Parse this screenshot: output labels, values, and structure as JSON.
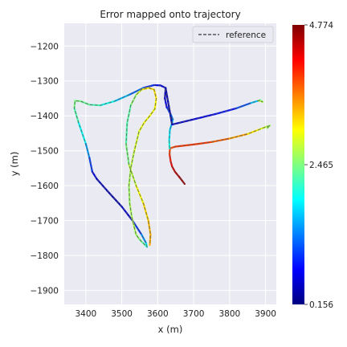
{
  "chart_data": {
    "type": "line",
    "title": "Error mapped onto trajectory",
    "xlabel": "x (m)",
    "ylabel": "y (m)",
    "xlim": [
      3340,
      3930
    ],
    "ylim": [
      -1940,
      -1135
    ],
    "x_ticks": [
      3400,
      3500,
      3600,
      3700,
      3800,
      3900
    ],
    "x_tick_labels": [
      "3400",
      "3500",
      "3600",
      "3700",
      "3800",
      "3900"
    ],
    "y_ticks": [
      -1200,
      -1300,
      -1400,
      -1500,
      -1600,
      -1700,
      -1800,
      -1900
    ],
    "y_tick_labels": [
      "−1200",
      "−1300",
      "−1400",
      "−1500",
      "−1600",
      "−1700",
      "−1800",
      "−1900"
    ],
    "grid": true,
    "legend": {
      "position": "top-right",
      "entries": [
        "reference"
      ]
    },
    "colorbar": {
      "min": 0.156,
      "max": 4.774,
      "tick_values": [
        0.156,
        2.465,
        4.774
      ],
      "tick_labels": [
        "0.156",
        "2.465",
        "4.774"
      ],
      "colormap": "jet"
    },
    "series": [
      {
        "x": [
          3675,
          3660,
          3648,
          3640,
          3636,
          3633,
          3634,
          3650,
          3700,
          3750,
          3800,
          3850,
          3880,
          3900,
          3912,
          3905
        ],
        "y": [
          -1595,
          -1575,
          -1560,
          -1545,
          -1530,
          -1510,
          -1493,
          -1488,
          -1482,
          -1475,
          -1465,
          -1452,
          -1440,
          -1432,
          -1428,
          -1435
        ],
        "error": [
          4.7,
          4.6,
          4.5,
          4.3,
          4.2,
          4.0,
          3.8,
          3.9,
          4.0,
          3.9,
          3.6,
          3.3,
          3.0,
          2.8,
          2.6,
          2.6
        ]
      },
      {
        "x": [
          3633,
          3632,
          3634,
          3640,
          3642,
          3636,
          3625,
          3620,
          3622,
          3640,
          3700,
          3760,
          3820,
          3860,
          3885,
          3892,
          3880
        ],
        "y": [
          -1493,
          -1470,
          -1440,
          -1420,
          -1410,
          -1395,
          -1375,
          -1350,
          -1320,
          -1425,
          -1410,
          -1395,
          -1378,
          -1363,
          -1355,
          -1360,
          -1356
        ],
        "error": [
          2.1,
          1.9,
          1.7,
          1.6,
          1.5,
          1.2,
          0.8,
          0.5,
          0.4,
          0.4,
          0.6,
          0.7,
          0.9,
          1.3,
          2.0,
          2.8,
          2.6
        ]
      },
      {
        "x": [
          3622,
          3608,
          3590,
          3560,
          3520,
          3480,
          3440,
          3410,
          3385,
          3370,
          3368,
          3380,
          3400,
          3410,
          3418,
          3430,
          3460,
          3500,
          3530,
          3555,
          3568,
          3570,
          3565,
          3555,
          3548,
          3540,
          3535,
          3528,
          3522,
          3520,
          3525,
          3535,
          3548,
          3562,
          3578,
          3592,
          3596,
          3590,
          3575,
          3555,
          3540,
          3525,
          3515,
          3512,
          3520,
          3540,
          3560,
          3574,
          3580,
          3578
        ],
        "y": [
          -1320,
          -1313,
          -1312,
          -1320,
          -1340,
          -1358,
          -1370,
          -1368,
          -1358,
          -1357,
          -1378,
          -1420,
          -1480,
          -1520,
          -1560,
          -1580,
          -1615,
          -1660,
          -1700,
          -1740,
          -1765,
          -1775,
          -1770,
          -1760,
          -1752,
          -1740,
          -1720,
          -1690,
          -1650,
          -1600,
          -1550,
          -1500,
          -1445,
          -1420,
          -1400,
          -1380,
          -1350,
          -1325,
          -1320,
          -1325,
          -1340,
          -1370,
          -1420,
          -1480,
          -1540,
          -1600,
          -1650,
          -1700,
          -1740,
          -1770
        ],
        "error": [
          0.5,
          0.6,
          0.8,
          1.0,
          1.4,
          1.8,
          2.1,
          2.3,
          2.4,
          2.5,
          2.4,
          2.1,
          1.7,
          1.2,
          0.8,
          0.5,
          0.4,
          0.4,
          0.7,
          1.2,
          1.6,
          1.9,
          2.2,
          2.4,
          2.5,
          2.6,
          2.7,
          2.7,
          2.6,
          2.6,
          2.7,
          2.8,
          2.9,
          3.0,
          3.0,
          3.0,
          3.1,
          3.2,
          3.2,
          3.0,
          2.7,
          2.4,
          2.2,
          2.3,
          2.6,
          2.9,
          3.1,
          3.3,
          3.4,
          3.4
        ]
      }
    ]
  }
}
